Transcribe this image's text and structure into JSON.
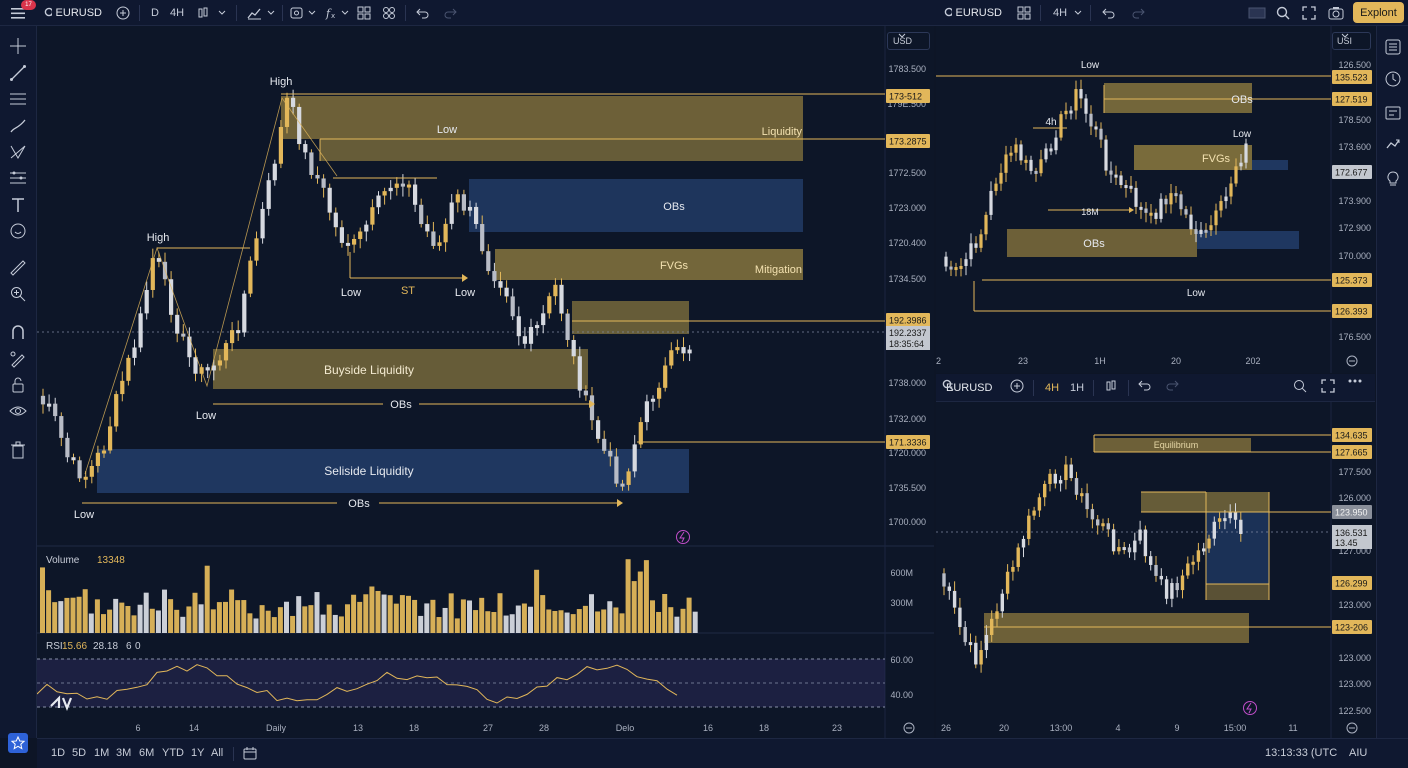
{
  "topbar": {
    "notification_count": "17",
    "symbol": "EURUSD",
    "interval_day": "D",
    "interval_4h": "4H",
    "right_symbol": "EURUSD",
    "right_interval": "4H",
    "explore_label": "Explont"
  },
  "main_chart": {
    "currency": "USD",
    "annotations": {
      "high_top": "High",
      "high_left": "High",
      "low_mid_top": "Low",
      "low_a": "Low",
      "st": "ST",
      "low_b": "Low",
      "low_left": "Low",
      "low_bottom": "Low",
      "liquidity": "Liquidity",
      "obs_zone": "OBs",
      "fvgs": "FVGs",
      "mitigation": "Mitigation",
      "buyside": "Buyside Liquidity",
      "obs_mid": "OBs",
      "sellside": "Seliside Liquidity",
      "obs_bottom": "OBs"
    },
    "price_axis": [
      "1783.500",
      "179E.500",
      "1772.500",
      "1723.000",
      "1720.400",
      "1734.500",
      "1738.000",
      "1732.000",
      "1720.000",
      "1735.500",
      "1700.000"
    ],
    "price_tags": {
      "tag1": "173-512",
      "tag2": "173.2875",
      "tag3": "192.3986",
      "tag4a": "192.2337",
      "tag4b": "18:35:64",
      "tag5": "171.3336"
    },
    "time_axis": [
      "6",
      "14",
      "Daily",
      "13",
      "18",
      "27",
      "28",
      "Delo",
      "16",
      "18",
      "23"
    ],
    "volume_label": "Volume",
    "volume_value": "13348",
    "volume_axis": [
      "600M",
      "300M"
    ],
    "rsi_label": "RSI",
    "rsi_values": [
      "15.66",
      "28.18",
      "6",
      "0"
    ],
    "rsi_axis": [
      "60.00",
      "40.00"
    ]
  },
  "top_right_chart": {
    "currency": "USI",
    "annotations": {
      "low_top": "Low",
      "obs_top": "OBs",
      "label_4h": "4h",
      "low_right": "Low",
      "fvgs": "FVGs",
      "label_18m": "18M",
      "obs_bottom": "OBs",
      "low_bottom": "Low"
    },
    "price_axis": [
      "126.500",
      "178.500",
      "173.600",
      "173.900",
      "172.900",
      "170.000",
      "176.500"
    ],
    "price_tags": [
      "135.523",
      "127.519",
      "172.677",
      "125.373",
      "126.393"
    ],
    "time_axis": [
      "2",
      "23",
      "1H",
      "20",
      "202"
    ]
  },
  "bottom_right_chart": {
    "symbol": "EURUSD",
    "interval_4h": "4H",
    "interval_1h": "1H",
    "annotations": {
      "equilibrium": "Equilibrium"
    },
    "price_axis": [
      "177.500",
      "126.000",
      "127.000",
      "123.000",
      "123.000",
      "123.000",
      "122.500"
    ],
    "price_tags": {
      "t1": "134.635",
      "t2": "127.665",
      "t3": "123.950",
      "t4a": "136.531",
      "t4b": "13.45",
      "t5": "126.299",
      "t6": "123-206"
    },
    "time_axis": [
      "26",
      "20",
      "13:00",
      "4",
      "9",
      "15:00",
      "11"
    ]
  },
  "bottombar": {
    "ranges": [
      "1D",
      "5D",
      "1M",
      "3M",
      "6M",
      "YTD",
      "1Y",
      "All"
    ],
    "clock": "13:13:33 (UTC",
    "adj": "AIU"
  },
  "colors": {
    "bg": "#0d1628",
    "gold": "#e2b75a",
    "zone_gold": "#8d7a3e",
    "zone_blue": "#24406e",
    "candle_white": "#d6d9e0"
  }
}
